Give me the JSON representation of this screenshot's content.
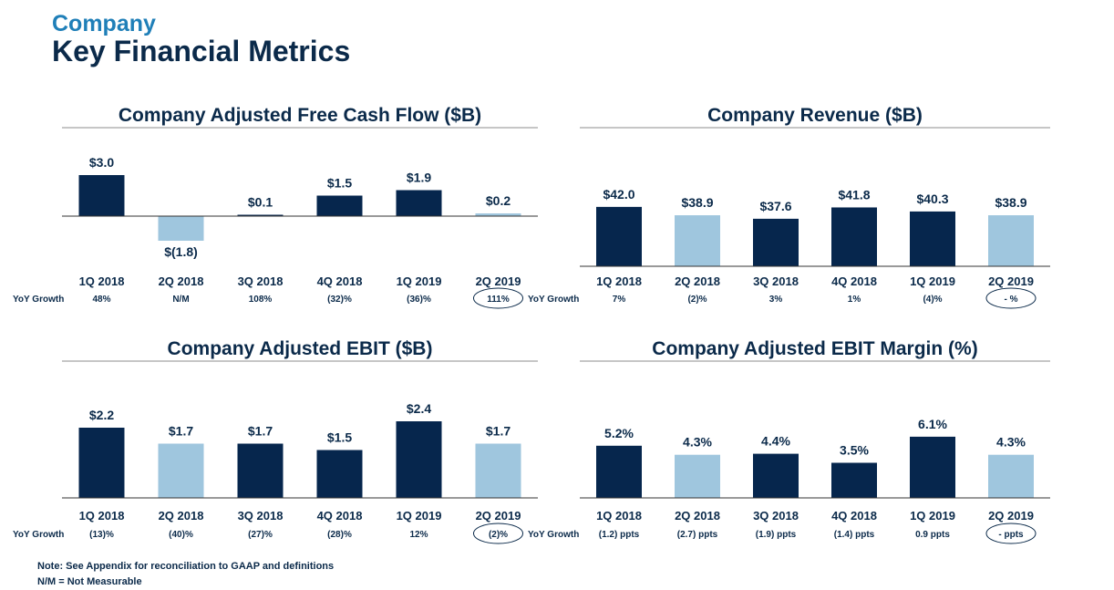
{
  "header": {
    "company": "Company",
    "title": "Key Financial Metrics"
  },
  "colors": {
    "dark": "#06264d",
    "light": "#9fc6de",
    "title": "#0b2a4a",
    "accent": "#1f7fb8"
  },
  "yoy_label": "YoY Growth",
  "notes": {
    "line1": "Note:  See Appendix for reconciliation to GAAP and definitions",
    "line2": "N/M = Not Measurable"
  },
  "chart_data": [
    {
      "id": "fcf",
      "type": "bar",
      "title": "Company Adjusted Free Cash Flow ($B)",
      "categories": [
        "1Q 2018",
        "2Q 2018",
        "3Q 2018",
        "4Q 2018",
        "1Q 2019",
        "2Q 2019"
      ],
      "values": [
        3.0,
        -1.8,
        0.1,
        1.5,
        1.9,
        0.2
      ],
      "labels": [
        "$3.0",
        "$(1.8)",
        "$0.1",
        "$1.5",
        "$1.9",
        "$0.2"
      ],
      "bar_colors": [
        "dark",
        "light",
        "dark",
        "dark",
        "dark",
        "light"
      ],
      "yoy": [
        "48%",
        "N/M",
        "108%",
        "(32)%",
        "(36)%",
        "111%"
      ],
      "yoy_circled": 5
    },
    {
      "id": "revenue",
      "type": "bar",
      "title": "Company Revenue ($B)",
      "categories": [
        "1Q 2018",
        "2Q 2018",
        "3Q 2018",
        "4Q 2018",
        "1Q 2019",
        "2Q 2019"
      ],
      "values": [
        42.0,
        38.9,
        37.6,
        41.8,
        40.3,
        38.9
      ],
      "labels": [
        "$42.0",
        "$38.9",
        "$37.6",
        "$41.8",
        "$40.3",
        "$38.9"
      ],
      "bar_colors": [
        "dark",
        "light",
        "dark",
        "dark",
        "dark",
        "light"
      ],
      "yoy": [
        "7%",
        "(2)%",
        "3%",
        "1%",
        "(4)%",
        "- %"
      ],
      "yoy_circled": 5
    },
    {
      "id": "ebit",
      "type": "bar",
      "title": "Company Adjusted EBIT ($B)",
      "categories": [
        "1Q 2018",
        "2Q 2018",
        "3Q 2018",
        "4Q 2018",
        "1Q 2019",
        "2Q 2019"
      ],
      "values": [
        2.2,
        1.7,
        1.7,
        1.5,
        2.4,
        1.7
      ],
      "labels": [
        "$2.2",
        "$1.7",
        "$1.7",
        "$1.5",
        "$2.4",
        "$1.7"
      ],
      "bar_colors": [
        "dark",
        "light",
        "dark",
        "dark",
        "dark",
        "light"
      ],
      "yoy": [
        "(13)%",
        "(40)%",
        "(27)%",
        "(28)%",
        "12%",
        "(2)%"
      ],
      "yoy_circled": 5
    },
    {
      "id": "margin",
      "type": "bar",
      "title": "Company Adjusted EBIT Margin (%)",
      "categories": [
        "1Q 2018",
        "2Q 2018",
        "3Q 2018",
        "4Q 2018",
        "1Q 2019",
        "2Q 2019"
      ],
      "values": [
        5.2,
        4.3,
        4.4,
        3.5,
        6.1,
        4.3
      ],
      "labels": [
        "5.2%",
        "4.3%",
        "4.4%",
        "3.5%",
        "6.1%",
        "4.3%"
      ],
      "bar_colors": [
        "dark",
        "light",
        "dark",
        "dark",
        "dark",
        "light"
      ],
      "yoy": [
        "(1.2) ppts",
        "(2.7) ppts",
        "(1.9) ppts",
        "(1.4) ppts",
        "0.9 ppts",
        "- ppts"
      ],
      "yoy_circled": 5
    }
  ]
}
